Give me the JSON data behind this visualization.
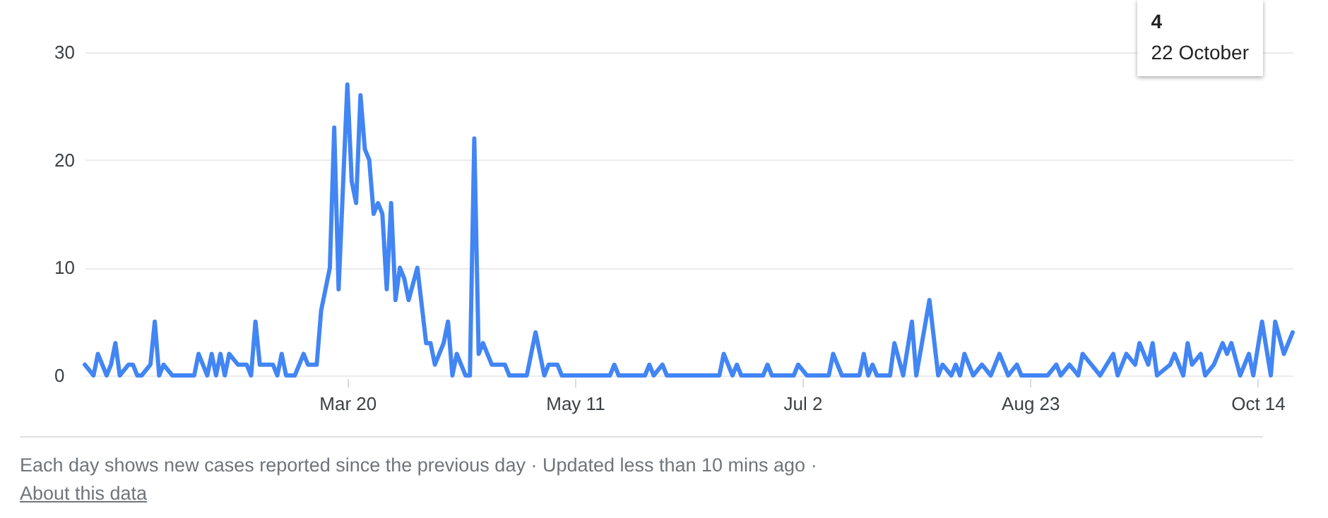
{
  "chart_data": {
    "type": "line",
    "xlim": [
      "--01-20",
      "--10-22"
    ],
    "xticks": [
      {
        "value": "--03-20",
        "label": "Mar 20"
      },
      {
        "value": "--05-11",
        "label": "May 11"
      },
      {
        "value": "--07-02",
        "label": "Jul 2"
      },
      {
        "value": "--08-23",
        "label": "Aug 23"
      },
      {
        "value": "--10-14",
        "label": "Oct 14"
      }
    ],
    "ylim": [
      0,
      30
    ],
    "yticks": [
      0,
      10,
      20,
      30
    ],
    "grid": "y",
    "series": [
      {
        "color": "#4285f4",
        "x": [
          "--01-20",
          "--01-22",
          "--01-23",
          "--01-25",
          "--01-26",
          "--01-27",
          "--01-28",
          "--01-30",
          "--01-31",
          "--02-01",
          "--02-02",
          "--02-04",
          "--02-05",
          "--02-06",
          "--02-07",
          "--02-09",
          "--02-14",
          "--02-15",
          "--02-17",
          "--02-18",
          "--02-19",
          "--02-20",
          "--02-21",
          "--02-22",
          "--02-24",
          "--02-26",
          "--02-27",
          "--02-28",
          "--02-29",
          "--03-03",
          "--03-04",
          "--03-05",
          "--03-06",
          "--03-08",
          "--03-10",
          "--03-11",
          "--03-13",
          "--03-14",
          "--03-16",
          "--03-17",
          "--03-18",
          "--03-20",
          "--03-21",
          "--03-22",
          "--03-23",
          "--03-24",
          "--03-25",
          "--03-26",
          "--03-27",
          "--03-28",
          "--03-29",
          "--03-30",
          "--03-31",
          "--04-01",
          "--04-02",
          "--04-03",
          "--04-05",
          "--04-07",
          "--04-08",
          "--04-09",
          "--04-11",
          "--04-12",
          "--04-13",
          "--04-14",
          "--04-16",
          "--04-17",
          "--04-18",
          "--04-19",
          "--04-20",
          "--04-22",
          "--04-25",
          "--04-26",
          "--04-30",
          "--05-02",
          "--05-04",
          "--05-05",
          "--05-07",
          "--05-08",
          "--05-19",
          "--05-20",
          "--05-21",
          "--05-27",
          "--05-28",
          "--05-29",
          "--05-31",
          "--06-01",
          "--06-13",
          "--06-14",
          "--06-16",
          "--06-17",
          "--06-18",
          "--06-23",
          "--06-24",
          "--06-25",
          "--06-30",
          "--07-01",
          "--07-03",
          "--07-08",
          "--07-09",
          "--07-11",
          "--07-15",
          "--07-16",
          "--07-17",
          "--07-18",
          "--07-19",
          "--07-22",
          "--07-23",
          "--07-25",
          "--07-27",
          "--07-28",
          "--07-31",
          "--08-02",
          "--08-03",
          "--08-05",
          "--08-06",
          "--08-07",
          "--08-08",
          "--08-10",
          "--08-12",
          "--08-14",
          "--08-16",
          "--08-18",
          "--08-20",
          "--08-21",
          "--08-27",
          "--08-29",
          "--08-30",
          "--09-01",
          "--09-03",
          "--09-04",
          "--09-06",
          "--09-08",
          "--09-11",
          "--09-12",
          "--09-14",
          "--09-16",
          "--09-17",
          "--09-19",
          "--09-20",
          "--09-21",
          "--09-24",
          "--09-25",
          "--09-27",
          "--09-28",
          "--09-29",
          "--10-01",
          "--10-02",
          "--10-04",
          "--10-06",
          "--10-07",
          "--10-08",
          "--10-10",
          "--10-12",
          "--10-13",
          "--10-15",
          "--10-17",
          "--10-18",
          "--10-20",
          "--10-22"
        ],
        "values": [
          1,
          0,
          2,
          0,
          1,
          3,
          0,
          1,
          1,
          0,
          0,
          1,
          5,
          0,
          1,
          0,
          0,
          2,
          0,
          2,
          0,
          2,
          0,
          2,
          1,
          1,
          0,
          5,
          1,
          1,
          0,
          2,
          0,
          0,
          2,
          1,
          1,
          6,
          10,
          23,
          8,
          27,
          18,
          16,
          26,
          21,
          20,
          15,
          16,
          15,
          8,
          16,
          7,
          10,
          9,
          7,
          10,
          3,
          3,
          1,
          3,
          5,
          0,
          2,
          0,
          0,
          22,
          2,
          3,
          1,
          1,
          0,
          0,
          4,
          0,
          1,
          1,
          0,
          0,
          1,
          0,
          0,
          1,
          0,
          1,
          0,
          0,
          2,
          0,
          1,
          0,
          0,
          1,
          0,
          0,
          1,
          0,
          0,
          2,
          0,
          0,
          2,
          0,
          1,
          0,
          0,
          3,
          0,
          5,
          0,
          7,
          0,
          1,
          0,
          1,
          0,
          2,
          0,
          1,
          0,
          2,
          0,
          1,
          0,
          0,
          1,
          0,
          1,
          0,
          2,
          1,
          0,
          2,
          0,
          2,
          1,
          3,
          1,
          3,
          0,
          1,
          2,
          0,
          3,
          1,
          2,
          0,
          1,
          3,
          2,
          3,
          0,
          2,
          0,
          5,
          0,
          5,
          2,
          4
        ]
      }
    ],
    "annotations": [
      "4",
      "22 October",
      "Each day shows new cases reported since the previous day · Updated less than 10 mins ago ·",
      "About this data"
    ]
  }
}
